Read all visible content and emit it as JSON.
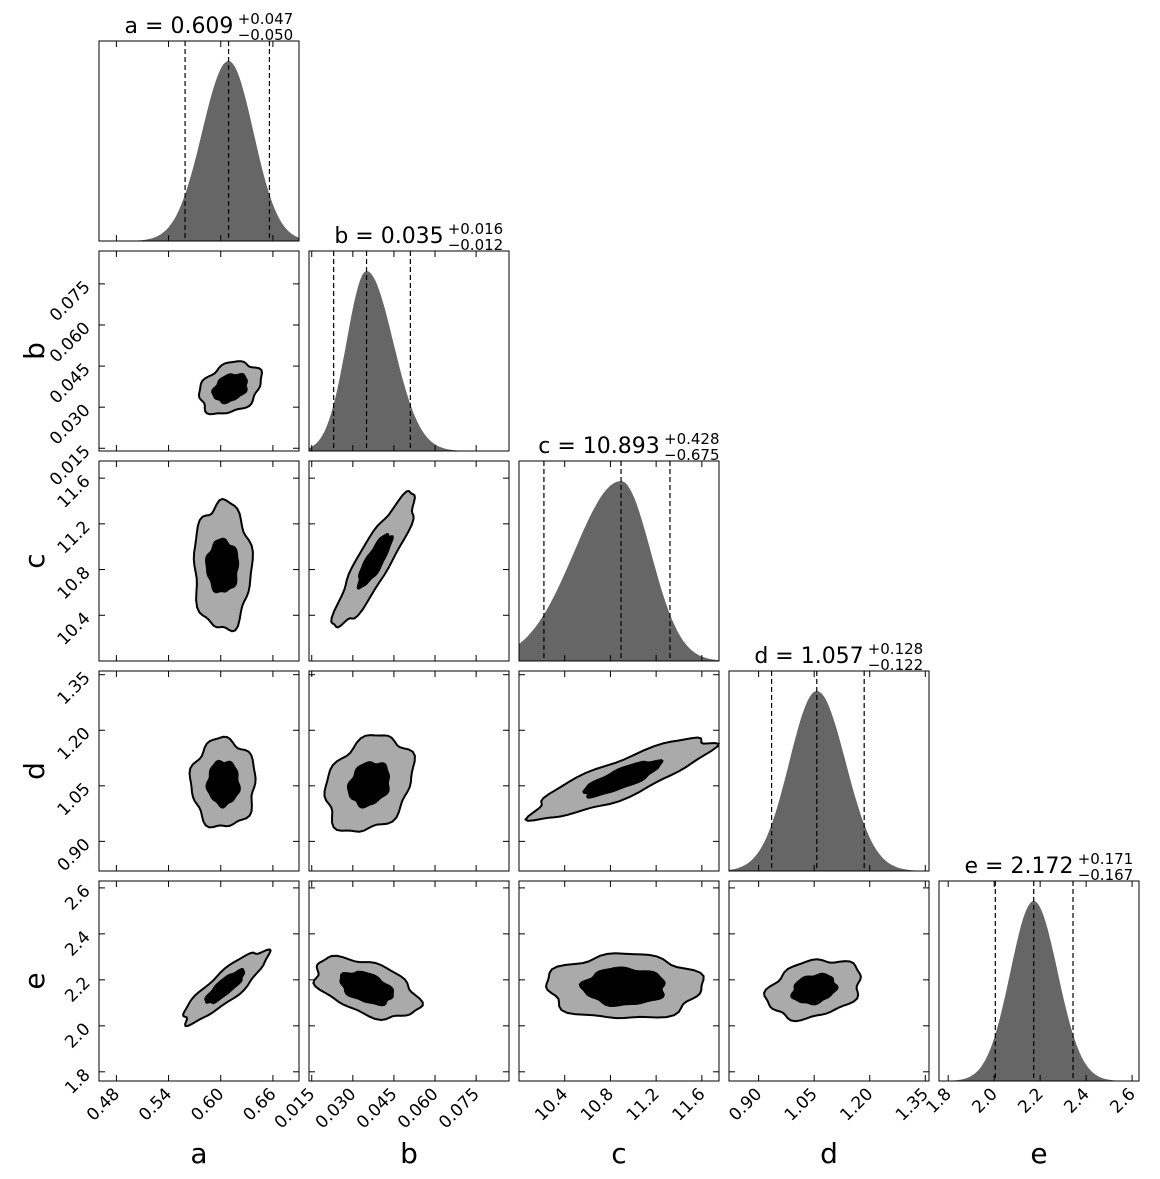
{
  "chart_data": {
    "type": "corner",
    "title": "",
    "params": [
      {
        "name": "a",
        "label": "a",
        "range": [
          0.46,
          0.69
        ],
        "ticks": [
          0.48,
          0.54,
          0.6,
          0.66
        ],
        "tick_labels": [
          "0.48",
          "0.54",
          "0.60",
          "0.66"
        ],
        "median": 0.609,
        "plus": 0.047,
        "minus": 0.05,
        "sd": 0.029,
        "title_main": "a = 0.609",
        "title_plus": "+0.047",
        "title_minus": "−0.050"
      },
      {
        "name": "b",
        "label": "b",
        "range": [
          0.014,
          0.087
        ],
        "ticks": [
          0.015,
          0.03,
          0.045,
          0.06,
          0.075
        ],
        "tick_labels": [
          "0.015",
          "0.030",
          "0.045",
          "0.060",
          "0.075"
        ],
        "median": 0.035,
        "plus": 0.016,
        "minus": 0.012,
        "sd": 0.0085,
        "title_main": "b = 0.035",
        "title_plus": "+0.016",
        "title_minus": "−0.012"
      },
      {
        "name": "c",
        "label": "c",
        "range": [
          10.0,
          11.75
        ],
        "ticks": [
          10.4,
          10.8,
          11.2,
          11.6
        ],
        "tick_labels": [
          "10.4",
          "10.8",
          "11.2",
          "11.6"
        ],
        "median": 10.893,
        "plus": 0.428,
        "minus": 0.675,
        "sd": 0.32,
        "title_main": "c = 10.893",
        "title_plus": "+0.428",
        "title_minus": "−0.675"
      },
      {
        "name": "d",
        "label": "d",
        "range": [
          0.82,
          1.36
        ],
        "ticks": [
          0.9,
          1.05,
          1.2,
          1.35
        ],
        "tick_labels": [
          "0.90",
          "1.05",
          "1.20",
          "1.35"
        ],
        "median": 1.057,
        "plus": 0.128,
        "minus": 0.122,
        "sd": 0.075,
        "title_main": "d = 1.057",
        "title_plus": "+0.128",
        "title_minus": "−0.122"
      },
      {
        "name": "e",
        "label": "e",
        "range": [
          1.76,
          2.63
        ],
        "ticks": [
          1.8,
          2.0,
          2.2,
          2.4,
          2.6
        ],
        "tick_labels": [
          "1.8",
          "2.0",
          "2.2",
          "2.4",
          "2.6"
        ],
        "median": 2.172,
        "plus": 0.171,
        "minus": 0.167,
        "sd": 0.095,
        "title_main": "e = 2.172",
        "title_plus": "+0.171",
        "title_minus": "−0.167"
      }
    ],
    "pairs": [
      {
        "row": 1,
        "col": 0,
        "center": [
          0.611,
          0.037
        ],
        "rx": [
          0.038,
          0.021
        ],
        "ry": [
          0.0085,
          0.0045
        ],
        "angle": -30
      },
      {
        "row": 2,
        "col": 0,
        "center": [
          0.602,
          10.83
        ],
        "rx": [
          0.033,
          0.018
        ],
        "ry": [
          0.56,
          0.23
        ],
        "angle": 0
      },
      {
        "row": 2,
        "col": 1,
        "center": [
          0.038,
          10.88
        ],
        "rx": [
          0.028,
          0.011
        ],
        "ry": [
          0.14,
          0.07
        ],
        "angle": -60
      },
      {
        "row": 3,
        "col": 0,
        "center": [
          0.603,
          1.057
        ],
        "rx": [
          0.037,
          0.018
        ],
        "ry": [
          0.12,
          0.06
        ],
        "angle": 0
      },
      {
        "row": 3,
        "col": 1,
        "center": [
          0.036,
          1.055
        ],
        "rx": [
          0.019,
          0.0085
        ],
        "ry": [
          0.105,
          0.05
        ],
        "angle": -55
      },
      {
        "row": 3,
        "col": 2,
        "center": [
          10.9,
          1.07
        ],
        "rx": [
          0.85,
          0.36
        ],
        "ry": [
          0.05,
          0.025
        ],
        "angle": -22
      },
      {
        "row": 4,
        "col": 0,
        "center": [
          0.605,
          2.17
        ],
        "rx": [
          0.062,
          0.028
        ],
        "ry": [
          0.06,
          0.03
        ],
        "angle": -40
      },
      {
        "row": 4,
        "col": 1,
        "center": [
          0.035,
          2.165
        ],
        "rx": [
          0.02,
          0.01
        ],
        "ry": [
          0.11,
          0.06
        ],
        "angle": 20
      },
      {
        "row": 4,
        "col": 2,
        "center": [
          10.92,
          2.17
        ],
        "rx": [
          0.68,
          0.36
        ],
        "ry": [
          0.14,
          0.08
        ],
        "angle": 0
      },
      {
        "row": 4,
        "col": 3,
        "center": [
          1.05,
          2.16
        ],
        "rx": [
          0.13,
          0.06
        ],
        "ry": [
          0.12,
          0.06
        ],
        "angle": -15
      }
    ],
    "colors": {
      "hist": "#666666",
      "outer": "#aaaaaa",
      "inner": "#000000",
      "line": "#000000"
    }
  }
}
